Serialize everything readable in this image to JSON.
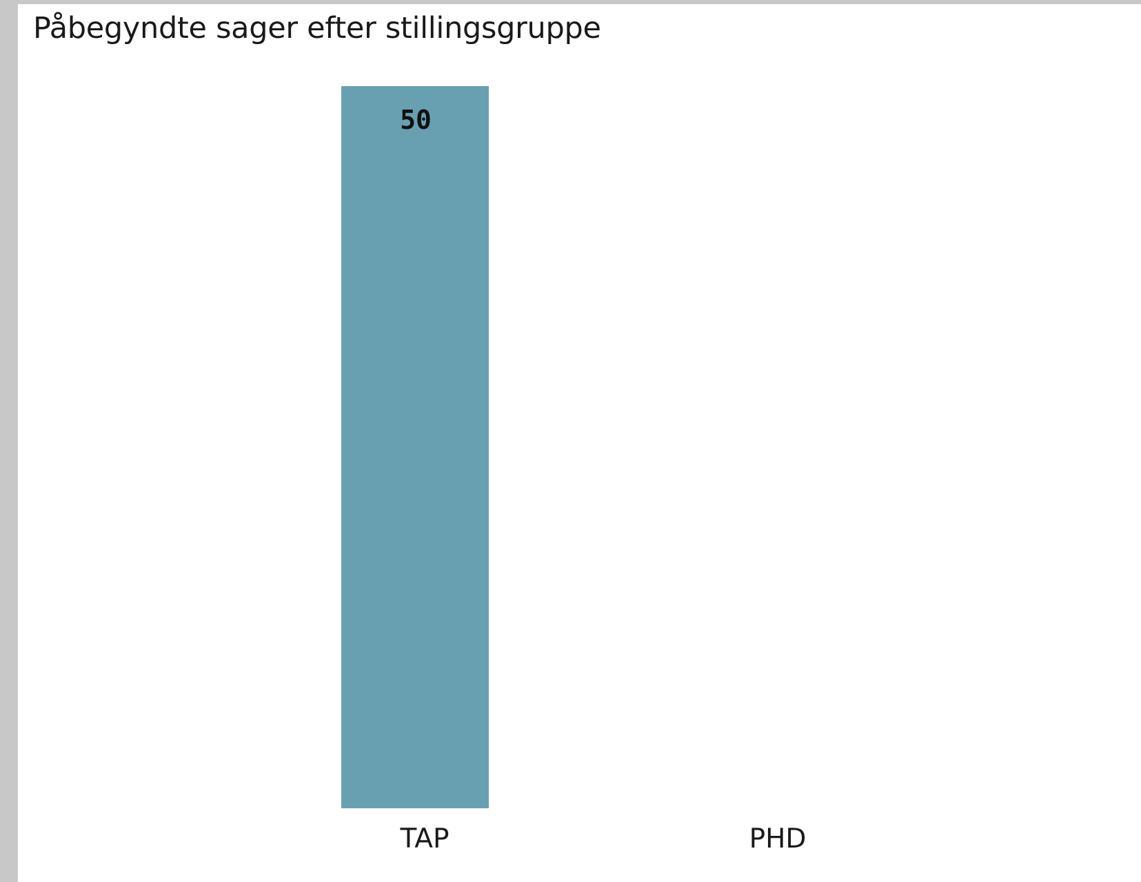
{
  "chart_data": {
    "type": "bar",
    "title": "Påbegyndte sager efter stillingsgruppe",
    "categories": [
      "TAP",
      "PHD"
    ],
    "values": [
      50,
      0
    ],
    "data_labels": [
      "50",
      ""
    ],
    "ylim": [
      0,
      50
    ],
    "grid": false,
    "colors": {
      "bar": "#68a0b2"
    }
  }
}
